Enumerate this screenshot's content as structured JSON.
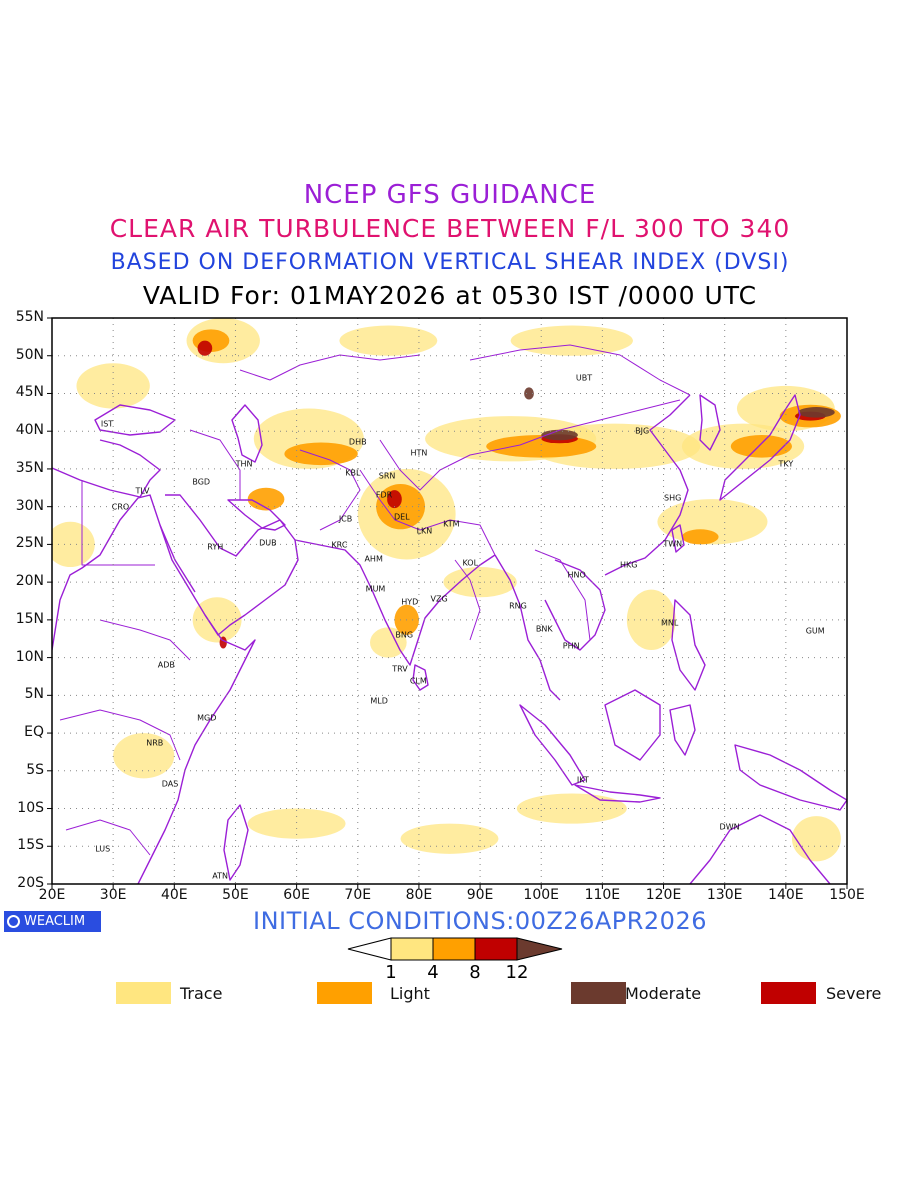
{
  "titles": {
    "line1": "NCEP GFS GUIDANCE",
    "line2": "CLEAR AIR TURBULENCE BETWEEN F/L 300 TO 340",
    "line3": "BASED ON DEFORMATION VERTICAL SHEAR INDEX (DVSI)",
    "line4": "VALID For: 01MAY2026 at 0530 IST /0000 UTC"
  },
  "axes": {
    "lat_labels": [
      "55N",
      "50N",
      "45N",
      "40N",
      "35N",
      "30N",
      "25N",
      "20N",
      "15N",
      "10N",
      "5N",
      "EQ",
      "5S",
      "10S",
      "15S",
      "20S"
    ],
    "lon_labels": [
      "20E",
      "30E",
      "40E",
      "50E",
      "60E",
      "70E",
      "80E",
      "90E",
      "100E",
      "110E",
      "120E",
      "130E",
      "140E",
      "150E"
    ]
  },
  "cities": [
    {
      "code": "UBT",
      "lon": 107,
      "lat": 47
    },
    {
      "code": "BJG",
      "lon": 116.5,
      "lat": 40
    },
    {
      "code": "TKY",
      "lon": 140,
      "lat": 35.7
    },
    {
      "code": "SHG",
      "lon": 121.5,
      "lat": 31.2
    },
    {
      "code": "TWN",
      "lon": 121.5,
      "lat": 25
    },
    {
      "code": "HKG",
      "lon": 114.3,
      "lat": 22.3
    },
    {
      "code": "HNO",
      "lon": 105.8,
      "lat": 21
    },
    {
      "code": "MNL",
      "lon": 121,
      "lat": 14.6
    },
    {
      "code": "GUM",
      "lon": 144.8,
      "lat": 13.5
    },
    {
      "code": "BNK",
      "lon": 100.5,
      "lat": 13.8
    },
    {
      "code": "PHN",
      "lon": 104.9,
      "lat": 11.6
    },
    {
      "code": "RNG",
      "lon": 96.2,
      "lat": 16.8
    },
    {
      "code": "IKT",
      "lon": 106.8,
      "lat": -6.2
    },
    {
      "code": "DWN",
      "lon": 130.8,
      "lat": -12.5
    },
    {
      "code": "HTN",
      "lon": 80,
      "lat": 37.1
    },
    {
      "code": "DHB",
      "lon": 70,
      "lat": 38.6
    },
    {
      "code": "KBL",
      "lon": 69.2,
      "lat": 34.5
    },
    {
      "code": "SRN",
      "lon": 74.8,
      "lat": 34.1
    },
    {
      "code": "FDR",
      "lon": 74.3,
      "lat": 31.5
    },
    {
      "code": "JCB",
      "lon": 68,
      "lat": 28.3
    },
    {
      "code": "DEL",
      "lon": 77.2,
      "lat": 28.6
    },
    {
      "code": "LKN",
      "lon": 80.9,
      "lat": 26.8
    },
    {
      "code": "KTM",
      "lon": 85.3,
      "lat": 27.7
    },
    {
      "code": "KRC",
      "lon": 67,
      "lat": 24.9
    },
    {
      "code": "AHM",
      "lon": 72.6,
      "lat": 23
    },
    {
      "code": "KOL",
      "lon": 88.4,
      "lat": 22.6
    },
    {
      "code": "MUM",
      "lon": 72.9,
      "lat": 19.1
    },
    {
      "code": "HYD",
      "lon": 78.5,
      "lat": 17.4
    },
    {
      "code": "VZG",
      "lon": 83.3,
      "lat": 17.7
    },
    {
      "code": "BNG",
      "lon": 77.6,
      "lat": 13
    },
    {
      "code": "TRV",
      "lon": 76.9,
      "lat": 8.5
    },
    {
      "code": "CLM",
      "lon": 79.9,
      "lat": 6.9
    },
    {
      "code": "MLD",
      "lon": 73.5,
      "lat": 4.2
    },
    {
      "code": "THN",
      "lon": 51.4,
      "lat": 35.7
    },
    {
      "code": "BGD",
      "lon": 44.4,
      "lat": 33.3
    },
    {
      "code": "TLV",
      "lon": 34.8,
      "lat": 32.1
    },
    {
      "code": "CRO",
      "lon": 31.2,
      "lat": 30
    },
    {
      "code": "IST",
      "lon": 29,
      "lat": 41
    },
    {
      "code": "RYH",
      "lon": 46.7,
      "lat": 24.7
    },
    {
      "code": "DUB",
      "lon": 55.3,
      "lat": 25.2
    },
    {
      "code": "ADB",
      "lon": 38.7,
      "lat": 9
    },
    {
      "code": "MGD",
      "lon": 45.3,
      "lat": 2
    },
    {
      "code": "NRB",
      "lon": 36.8,
      "lat": -1.3
    },
    {
      "code": "DAS",
      "lon": 39.3,
      "lat": -6.8
    },
    {
      "code": "LUS",
      "lon": 28.3,
      "lat": -15.4
    },
    {
      "code": "ATN",
      "lon": 47.5,
      "lat": -18.9
    }
  ],
  "branding": {
    "badge": "WEACLIM",
    "initial_conditions": "INITIAL CONDITIONS:00Z26APR2026"
  },
  "colorbar": {
    "labels": [
      "1",
      "4",
      "8",
      "12"
    ],
    "colors": {
      "trace": "#ffe680",
      "light": "#ffa000",
      "severe": "#c00000",
      "moderate": "#6b3a2e",
      "coast": "#9b1fd6"
    }
  },
  "legend": [
    {
      "label": "Trace",
      "color": "#ffe680"
    },
    {
      "label": "Light",
      "color": "#ffa000"
    },
    {
      "label": "Moderate",
      "color": "#6b3a2e"
    },
    {
      "label": "Severe",
      "color": "#c00000"
    }
  ],
  "turbulence": [
    {
      "level": "trace",
      "areas": [
        {
          "lon": 48,
          "lat": 52,
          "rx": 6,
          "ry": 3
        },
        {
          "lon": 30,
          "lat": 46,
          "rx": 6,
          "ry": 3
        },
        {
          "lon": 62,
          "lat": 39,
          "rx": 9,
          "ry": 4
        },
        {
          "lon": 78,
          "lat": 29,
          "rx": 8,
          "ry": 6
        },
        {
          "lon": 95,
          "lat": 39,
          "rx": 14,
          "ry": 3
        },
        {
          "lon": 112,
          "lat": 38,
          "rx": 14,
          "ry": 3
        },
        {
          "lon": 133,
          "lat": 38,
          "rx": 10,
          "ry": 3
        },
        {
          "lon": 140,
          "lat": 43,
          "rx": 8,
          "ry": 3
        },
        {
          "lon": 128,
          "lat": 28,
          "rx": 9,
          "ry": 3
        },
        {
          "lon": 105,
          "lat": 52,
          "rx": 10,
          "ry": 2
        },
        {
          "lon": 75,
          "lat": 52,
          "rx": 8,
          "ry": 2
        },
        {
          "lon": 23,
          "lat": 25,
          "rx": 4,
          "ry": 3
        },
        {
          "lon": 47,
          "lat": 15,
          "rx": 4,
          "ry": 3
        },
        {
          "lon": 85,
          "lat": -14,
          "rx": 8,
          "ry": 2
        },
        {
          "lon": 105,
          "lat": -10,
          "rx": 9,
          "ry": 2
        },
        {
          "lon": 60,
          "lat": -12,
          "rx": 8,
          "ry": 2
        },
        {
          "lon": 35,
          "lat": -3,
          "rx": 5,
          "ry": 3
        },
        {
          "lon": 90,
          "lat": 20,
          "rx": 6,
          "ry": 2
        },
        {
          "lon": 118,
          "lat": 15,
          "rx": 4,
          "ry": 4
        },
        {
          "lon": 145,
          "lat": -14,
          "rx": 4,
          "ry": 3
        },
        {
          "lon": 75,
          "lat": 12,
          "rx": 3,
          "ry": 2
        }
      ]
    },
    {
      "level": "light",
      "areas": [
        {
          "lon": 46,
          "lat": 52,
          "rx": 3,
          "ry": 1.5
        },
        {
          "lon": 64,
          "lat": 37,
          "rx": 6,
          "ry": 1.5
        },
        {
          "lon": 77,
          "lat": 30,
          "rx": 4,
          "ry": 3
        },
        {
          "lon": 100,
          "lat": 38,
          "rx": 9,
          "ry": 1.5
        },
        {
          "lon": 136,
          "lat": 38,
          "rx": 5,
          "ry": 1.5
        },
        {
          "lon": 144,
          "lat": 42,
          "rx": 5,
          "ry": 1.5
        },
        {
          "lon": 126,
          "lat": 26,
          "rx": 3,
          "ry": 1
        },
        {
          "lon": 78,
          "lat": 15,
          "rx": 2,
          "ry": 2
        },
        {
          "lon": 55,
          "lat": 31,
          "rx": 3,
          "ry": 1.5
        }
      ]
    },
    {
      "level": "severe",
      "areas": [
        {
          "lon": 45,
          "lat": 51,
          "rx": 1.2,
          "ry": 1
        },
        {
          "lon": 76,
          "lat": 31,
          "rx": 1.2,
          "ry": 1.2
        },
        {
          "lon": 103,
          "lat": 39,
          "rx": 3,
          "ry": 0.6
        },
        {
          "lon": 144,
          "lat": 42,
          "rx": 2.5,
          "ry": 0.6
        },
        {
          "lon": 48,
          "lat": 12,
          "rx": 0.6,
          "ry": 0.8
        }
      ]
    },
    {
      "level": "moderate",
      "areas": [
        {
          "lon": 103,
          "lat": 39.5,
          "rx": 3,
          "ry": 0.7
        },
        {
          "lon": 145,
          "lat": 42.5,
          "rx": 3,
          "ry": 0.7
        },
        {
          "lon": 98,
          "lat": 45,
          "rx": 0.8,
          "ry": 0.8
        }
      ]
    }
  ]
}
